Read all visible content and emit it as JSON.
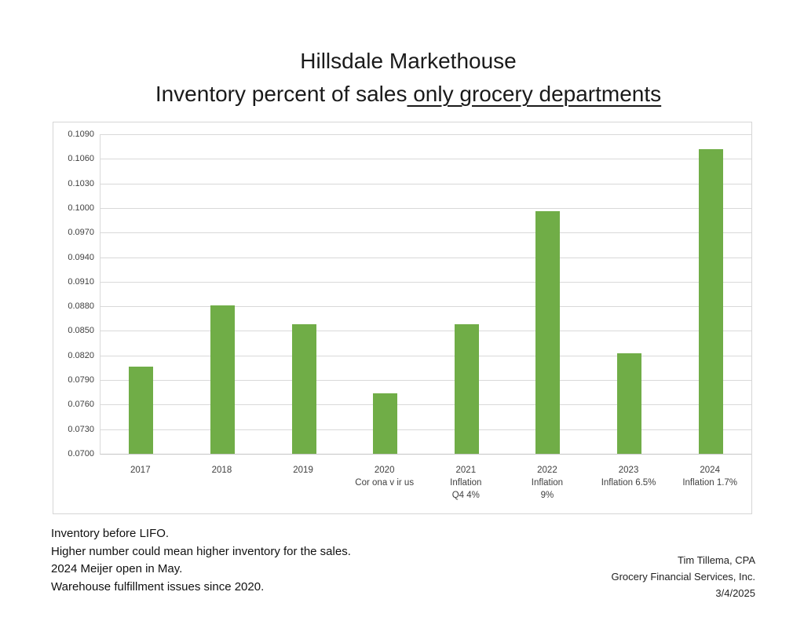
{
  "title": {
    "line1": "Hillsdale Markethouse",
    "line2_plain": "Inventory percent of sales",
    "line2_underlined": " only grocery departments"
  },
  "chart_data": {
    "type": "bar",
    "title": "Hillsdale Markethouse — Inventory percent of sales only grocery departments",
    "categories": [
      "2017",
      "2018",
      "2019",
      "2020",
      "2021",
      "2022",
      "2023",
      "2024"
    ],
    "sublabels": [
      [],
      [],
      [],
      [
        "Cor ona v ir us"
      ],
      [
        "Inflation",
        "Q4 4%"
      ],
      [
        "Inflation",
        "9%"
      ],
      [
        "Inflation 6.5%"
      ],
      [
        "Inflation 1.7%"
      ]
    ],
    "values": [
      0.0806,
      0.0881,
      0.0858,
      0.0774,
      0.0858,
      0.0996,
      0.0823,
      0.1072
    ],
    "xlabel": "",
    "ylabel": "",
    "ylim": [
      0.07,
      0.109
    ],
    "ytick_step": 0.003,
    "yticks": [
      "0.1090",
      "0.1060",
      "0.1030",
      "0.1000",
      "0.0970",
      "0.0940",
      "0.0910",
      "0.0880",
      "0.0850",
      "0.0820",
      "0.0790",
      "0.0760",
      "0.0730",
      "0.0700"
    ],
    "grid": true,
    "legend": false,
    "bar_color": "#70AD47",
    "gridline_color": "#D9D9D9",
    "axis_text_color": "#404040"
  },
  "notes": {
    "lines": [
      "Inventory before LIFO.",
      "Higher number could mean higher inventory for the sales.",
      "2024 Meijer open in May.",
      "Warehouse fulfillment issues since 2020."
    ]
  },
  "attribution": {
    "lines": [
      "Tim Tillema, CPA",
      "Grocery Financial Services, Inc.",
      "3/4/2025"
    ]
  }
}
